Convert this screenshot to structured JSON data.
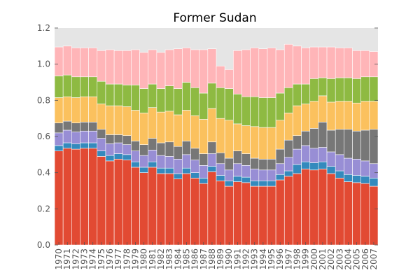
{
  "chart_data": {
    "type": "bar",
    "stacked": true,
    "title": "Former Sudan",
    "xlabel": "",
    "ylabel": "",
    "ylim": [
      0,
      1.2
    ],
    "yticks": [
      "0.0",
      "0.2",
      "0.4",
      "0.6",
      "0.8",
      "1.0",
      "1.2"
    ],
    "grid": false,
    "background": "#e5e5e5",
    "categories": [
      "1970",
      "1971",
      "1972",
      "1973",
      "1974",
      "1975",
      "1976",
      "1977",
      "1978",
      "1979",
      "1980",
      "1981",
      "1982",
      "1983",
      "1984",
      "1985",
      "1986",
      "1987",
      "1988",
      "1989",
      "1990",
      "1991",
      "1992",
      "1993",
      "1994",
      "1995",
      "1996",
      "1997",
      "1998",
      "1999",
      "2000",
      "2001",
      "2002",
      "2003",
      "2004",
      "2005",
      "2006",
      "2007"
    ],
    "series": [
      {
        "color": "#e24a33",
        "values": [
          0.52,
          0.535,
          0.53,
          0.535,
          0.535,
          0.49,
          0.465,
          0.475,
          0.47,
          0.43,
          0.4,
          0.43,
          0.395,
          0.395,
          0.365,
          0.395,
          0.37,
          0.34,
          0.405,
          0.355,
          0.325,
          0.35,
          0.345,
          0.325,
          0.325,
          0.325,
          0.36,
          0.38,
          0.395,
          0.42,
          0.415,
          0.42,
          0.395,
          0.37,
          0.35,
          0.345,
          0.34,
          0.325
        ]
      },
      {
        "color": "#348abd",
        "values": [
          0.03,
          0.03,
          0.03,
          0.03,
          0.03,
          0.03,
          0.03,
          0.03,
          0.03,
          0.03,
          0.03,
          0.03,
          0.03,
          0.03,
          0.03,
          0.03,
          0.03,
          0.03,
          0.03,
          0.03,
          0.03,
          0.03,
          0.03,
          0.03,
          0.03,
          0.03,
          0.03,
          0.03,
          0.05,
          0.04,
          0.04,
          0.04,
          0.04,
          0.04,
          0.04,
          0.04,
          0.04,
          0.045
        ]
      },
      {
        "color": "#988ed5",
        "values": [
          0.07,
          0.07,
          0.065,
          0.065,
          0.065,
          0.07,
          0.065,
          0.06,
          0.055,
          0.06,
          0.065,
          0.065,
          0.07,
          0.065,
          0.08,
          0.075,
          0.07,
          0.07,
          0.07,
          0.065,
          0.06,
          0.07,
          0.065,
          0.065,
          0.06,
          0.06,
          0.06,
          0.075,
          0.085,
          0.09,
          0.08,
          0.08,
          0.08,
          0.09,
          0.09,
          0.09,
          0.085,
          0.08
        ]
      },
      {
        "color": "#777777",
        "values": [
          0.055,
          0.05,
          0.05,
          0.05,
          0.05,
          0.05,
          0.05,
          0.045,
          0.05,
          0.055,
          0.06,
          0.065,
          0.07,
          0.08,
          0.07,
          0.075,
          0.065,
          0.065,
          0.065,
          0.06,
          0.065,
          0.07,
          0.065,
          0.06,
          0.06,
          0.06,
          0.08,
          0.095,
          0.075,
          0.08,
          0.11,
          0.14,
          0.12,
          0.14,
          0.16,
          0.155,
          0.17,
          0.19
        ]
      },
      {
        "color": "#fbc15e",
        "values": [
          0.14,
          0.135,
          0.14,
          0.14,
          0.14,
          0.14,
          0.16,
          0.16,
          0.16,
          0.17,
          0.175,
          0.17,
          0.17,
          0.17,
          0.175,
          0.17,
          0.18,
          0.19,
          0.185,
          0.19,
          0.21,
          0.15,
          0.155,
          0.175,
          0.175,
          0.175,
          0.16,
          0.15,
          0.165,
          0.15,
          0.15,
          0.145,
          0.155,
          0.155,
          0.155,
          0.155,
          0.16,
          0.155
        ]
      },
      {
        "color": "#8eba42",
        "values": [
          0.12,
          0.12,
          0.115,
          0.11,
          0.11,
          0.125,
          0.12,
          0.12,
          0.12,
          0.14,
          0.135,
          0.13,
          0.13,
          0.14,
          0.145,
          0.155,
          0.155,
          0.145,
          0.14,
          0.17,
          0.175,
          0.165,
          0.16,
          0.165,
          0.165,
          0.165,
          0.15,
          0.14,
          0.12,
          0.11,
          0.125,
          0.1,
          0.13,
          0.13,
          0.13,
          0.135,
          0.135,
          0.135
        ]
      },
      {
        "color": "#ffb5b8",
        "values": [
          0.16,
          0.16,
          0.16,
          0.16,
          0.16,
          0.17,
          0.19,
          0.185,
          0.19,
          0.195,
          0.2,
          0.19,
          0.2,
          0.2,
          0.22,
          0.19,
          0.21,
          0.24,
          0.19,
          0.12,
          0.105,
          0.24,
          0.26,
          0.27,
          0.27,
          0.275,
          0.24,
          0.24,
          0.21,
          0.2,
          0.175,
          0.17,
          0.175,
          0.165,
          0.165,
          0.155,
          0.145,
          0.14
        ]
      }
    ]
  }
}
